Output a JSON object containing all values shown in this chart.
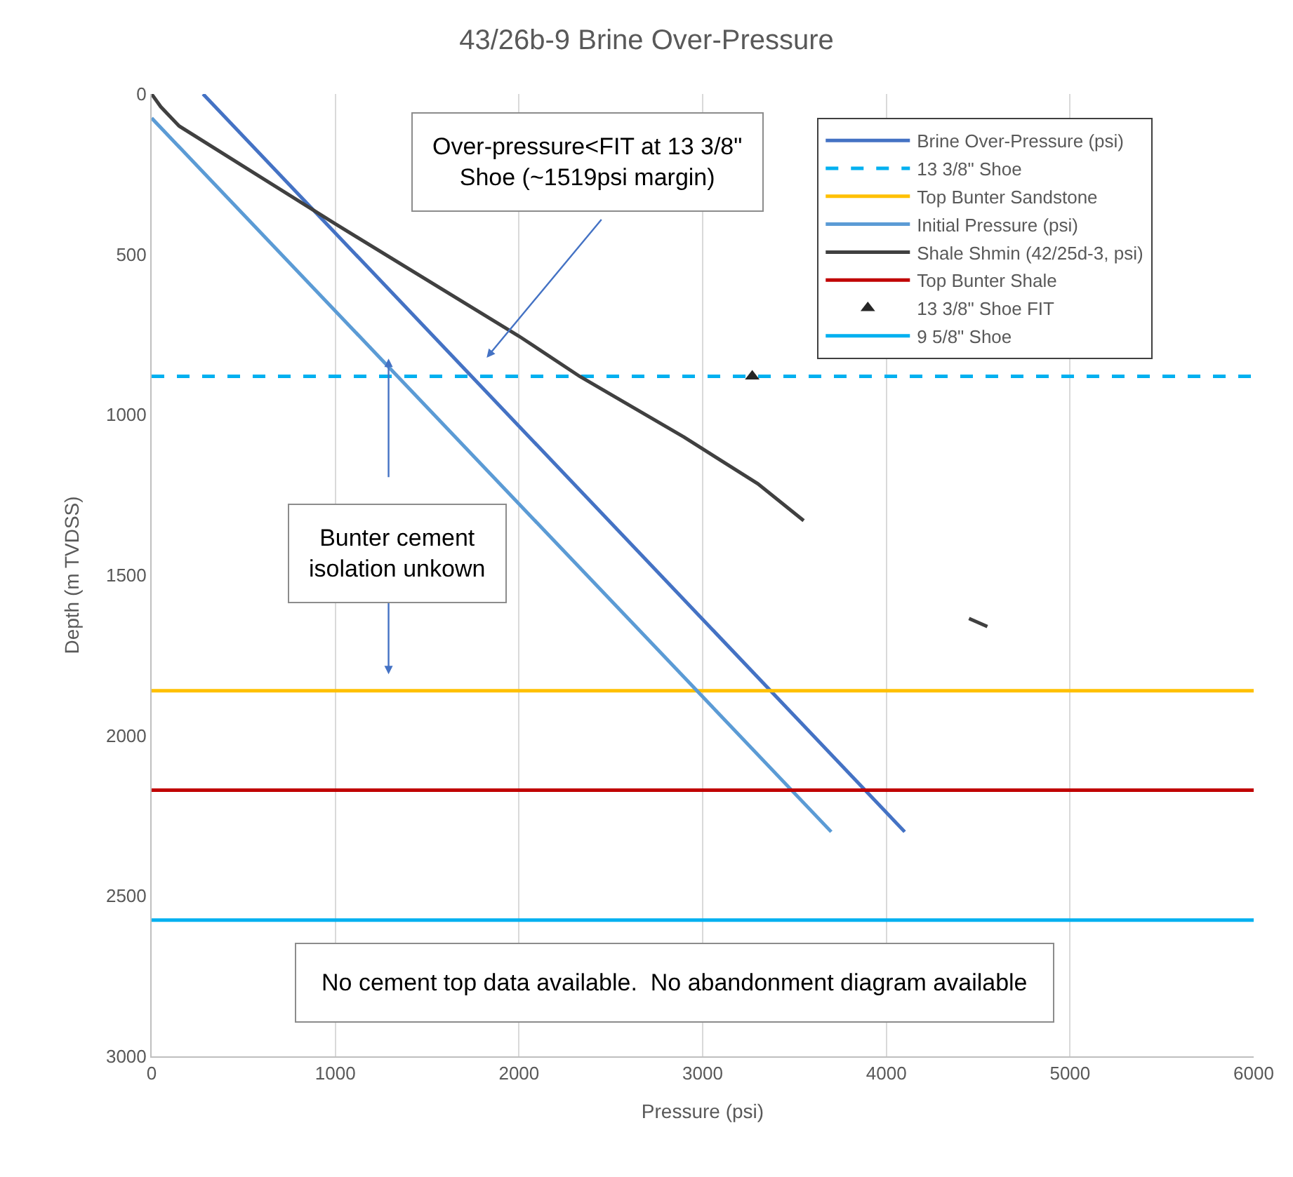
{
  "chart_data": {
    "type": "line",
    "title": "43/26b-9 Brine Over-Pressure",
    "xlabel": "Pressure (psi)",
    "ylabel": "Depth (m TVDSS)",
    "xlim": [
      0,
      6000
    ],
    "xticks": [
      0,
      1000,
      2000,
      3000,
      4000,
      5000,
      6000
    ],
    "ylim": [
      3000,
      0
    ],
    "yticks": [
      0,
      500,
      1000,
      1500,
      2000,
      2500,
      3000
    ],
    "grid": "x",
    "legend": "top right",
    "marker": "none",
    "series": [
      {
        "name": "Brine Over-Pressure (psi)",
        "color": "#4472c4",
        "x": [
          280,
          4100
        ],
        "values": [
          0,
          2300
        ]
      },
      {
        "name": "13 3/8\" Shoe",
        "color": "#00b0f0",
        "line_style": "dashed",
        "x": [
          0,
          6000
        ],
        "values": [
          880,
          880
        ]
      },
      {
        "name": "Top Bunter Sandstone",
        "color": "#ffc000",
        "x": [
          0,
          6000
        ],
        "values": [
          1860,
          1860
        ]
      },
      {
        "name": "Initial Pressure (psi)",
        "color": "#5b9bd5",
        "x": [
          0,
          3700
        ],
        "values": [
          75,
          2300
        ]
      },
      {
        "name": "Shale Shmin (42/25d-3, psi)",
        "color": "#404040",
        "x": [
          0,
          50,
          150,
          1000,
          2000,
          2330,
          2900,
          3300,
          3550,
          4000,
          4450,
          4550
        ],
        "values": [
          0,
          40,
          100,
          405,
          755,
          880,
          1070,
          1215,
          1330,
          null,
          1635,
          1660
        ]
      },
      {
        "name": "Top Bunter Shale",
        "color": "#c00000",
        "x": [
          0,
          6000
        ],
        "values": [
          2170,
          2170
        ]
      },
      {
        "name": "13 3/8\" Shoe FIT",
        "color": "#262626",
        "type": "scatter",
        "marker": "triangle",
        "x": [
          3270
        ],
        "values": [
          880
        ]
      },
      {
        "name": "9 5/8\" Shoe",
        "color": "#00b0f0",
        "x": [
          0,
          6000
        ],
        "values": [
          2575,
          2575
        ]
      }
    ],
    "annotations": [
      "Over-pressure<FIT at 13 3/8\"\nShoe (~1519psi margin)",
      "Bunter cement\nisolation unkown",
      "No cement top data available.  No abandonment diagram available"
    ]
  }
}
